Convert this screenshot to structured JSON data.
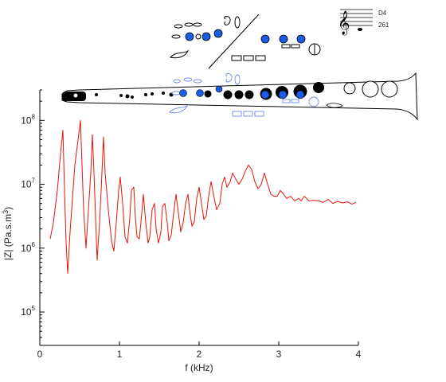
{
  "chart_data": {
    "type": "line",
    "title": "",
    "xlabel": "f (kHz)",
    "ylabel_main": "|Z| (Pa.s.m",
    "ylabel_sup": "3",
    "ylabel_end": ")",
    "xlim": [
      0,
      4
    ],
    "ylim": [
      30000,
      300000000
    ],
    "yscale": "log",
    "grid": false,
    "xticks": [
      0,
      1,
      2,
      3,
      4
    ],
    "xtick_labels": [
      "0",
      "1",
      "2",
      "3",
      "4"
    ],
    "yticks": [
      100000,
      1000000,
      10000000,
      100000000
    ],
    "ytick_labels": [
      {
        "base": "10",
        "exp": "5"
      },
      {
        "base": "10",
        "exp": "6"
      },
      {
        "base": "10",
        "exp": "7"
      },
      {
        "base": "10",
        "exp": "8"
      }
    ],
    "series": [
      {
        "color": "#e8140a",
        "x": [
          0.13,
          0.17,
          0.22,
          0.26,
          0.29,
          0.31,
          0.33,
          0.35,
          0.38,
          0.41,
          0.44,
          0.48,
          0.51,
          0.53,
          0.55,
          0.58,
          0.61,
          0.64,
          0.66,
          0.68,
          0.7,
          0.72,
          0.75,
          0.77,
          0.8,
          0.82,
          0.86,
          0.9,
          0.93,
          0.96,
          0.99,
          1.01,
          1.04,
          1.07,
          1.1,
          1.13,
          1.15,
          1.18,
          1.2,
          1.22,
          1.25,
          1.28,
          1.3,
          1.33,
          1.36,
          1.38,
          1.41,
          1.44,
          1.46,
          1.49,
          1.52,
          1.54,
          1.57,
          1.6,
          1.62,
          1.65,
          1.68,
          1.71,
          1.74,
          1.77,
          1.8,
          1.83,
          1.86,
          1.88,
          1.91,
          1.94,
          1.97,
          2.0,
          2.03,
          2.06,
          2.09,
          2.12,
          2.15,
          2.19,
          2.22,
          2.26,
          2.29,
          2.32,
          2.35,
          2.39,
          2.42,
          2.46,
          2.5,
          2.54,
          2.58,
          2.62,
          2.66,
          2.7,
          2.74,
          2.78,
          2.82,
          2.86,
          2.9,
          2.94,
          2.98,
          3.02,
          3.06,
          3.1,
          3.15,
          3.2,
          3.25,
          3.28,
          3.32,
          3.38,
          3.44,
          3.5,
          3.56,
          3.62,
          3.68,
          3.74,
          3.8,
          3.86,
          3.92,
          3.97
        ],
        "y": [
          1400000,
          2500000,
          8000000,
          30000000,
          70000000,
          8000000,
          1200000,
          400000,
          1800000,
          6000000,
          20000000,
          50000000,
          100000000,
          20000000,
          4000000,
          1000000,
          4000000,
          15000000,
          60000000,
          15000000,
          3000000,
          650000,
          2500000,
          8000000,
          55000000,
          15000000,
          4000000,
          1300000,
          900000,
          2500000,
          8000000,
          13000000,
          5000000,
          1500000,
          1200000,
          3000000,
          8000000,
          9000000,
          3000000,
          1500000,
          1400000,
          3500000,
          7000000,
          2500000,
          1200000,
          1500000,
          4000000,
          5000000,
          2000000,
          1200000,
          1800000,
          4500000,
          5000000,
          2500000,
          1300000,
          1600000,
          3500000,
          7000000,
          3500000,
          1800000,
          2500000,
          5000000,
          7000000,
          4000000,
          2200000,
          2600000,
          6000000,
          9000000,
          5000000,
          2800000,
          3200000,
          6500000,
          11000000,
          6000000,
          4000000,
          5000000,
          10000000,
          13000000,
          9000000,
          11000000,
          15000000,
          12000000,
          10000000,
          12000000,
          16000000,
          20000000,
          17000000,
          11000000,
          8500000,
          10000000,
          15000000,
          10000000,
          7000000,
          6500000,
          6500000,
          8000000,
          7000000,
          6000000,
          6500000,
          5500000,
          6000000,
          5500000,
          6500000,
          5500000,
          5600000,
          5500000,
          5200000,
          5800000,
          5000000,
          5400000,
          5100000,
          5300000,
          4900000,
          5200000
        ]
      }
    ],
    "annotations": {
      "note": "D4",
      "frequency": "261"
    }
  }
}
